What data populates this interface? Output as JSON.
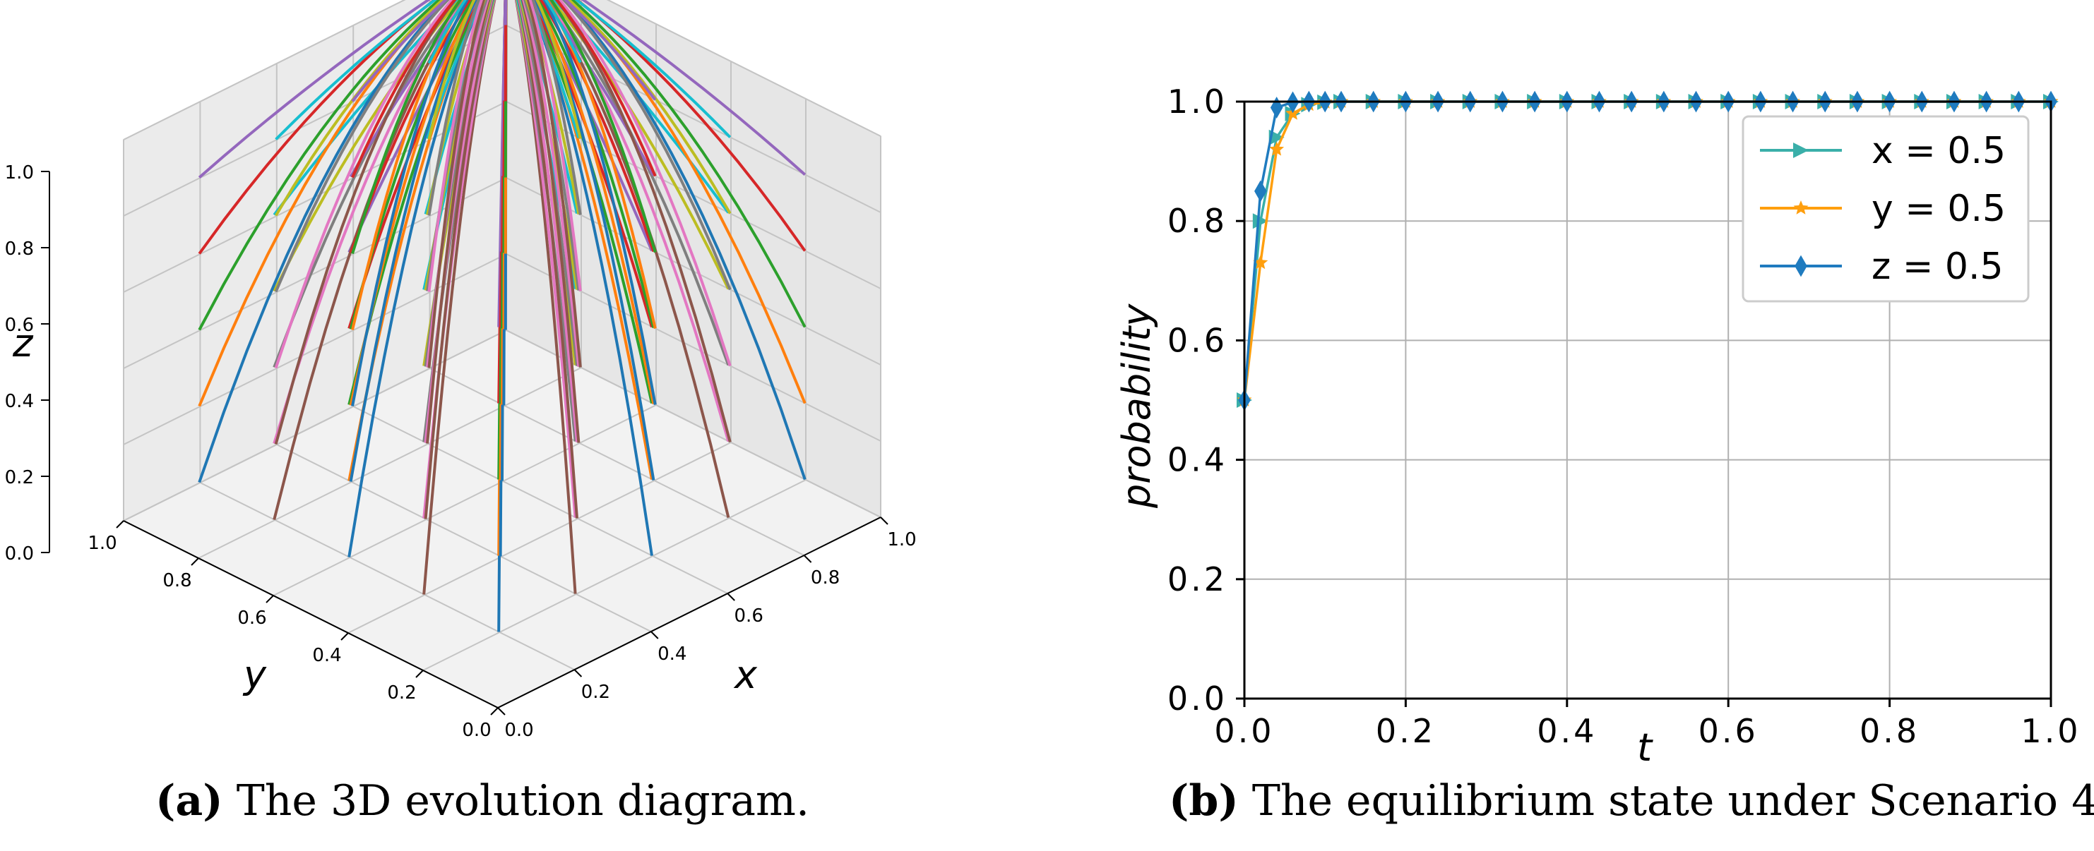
{
  "chart_data": [
    {
      "type": "line3d",
      "title": "",
      "xlabel": "x",
      "ylabel": "y",
      "zlabel": "z",
      "xlim": [
        0.0,
        1.0
      ],
      "ylim": [
        0.0,
        1.0
      ],
      "zlim": [
        0.0,
        1.0
      ],
      "x_ticks": [
        "0.0",
        "0.2",
        "0.4",
        "0.6",
        "0.8",
        "1.0"
      ],
      "y_ticks": [
        "0.0",
        "0.2",
        "0.4",
        "0.6",
        "0.8",
        "1.0"
      ],
      "z_ticks": [
        "0.0",
        "0.2",
        "0.4",
        "0.6",
        "0.8",
        "1.0"
      ],
      "grid": true,
      "converges_to": [
        1.0,
        1.0,
        1.0
      ],
      "trajectory_starts": [
        [
          0.1,
          0.1,
          0.1
        ],
        [
          0.1,
          0.1,
          0.3
        ],
        [
          0.1,
          0.1,
          0.5
        ],
        [
          0.1,
          0.1,
          0.7
        ],
        [
          0.1,
          0.1,
          0.9
        ],
        [
          0.1,
          0.3,
          0.1
        ],
        [
          0.1,
          0.3,
          0.3
        ],
        [
          0.1,
          0.3,
          0.5
        ],
        [
          0.1,
          0.3,
          0.7
        ],
        [
          0.1,
          0.3,
          0.9
        ],
        [
          0.1,
          0.5,
          0.1
        ],
        [
          0.1,
          0.5,
          0.3
        ],
        [
          0.1,
          0.5,
          0.5
        ],
        [
          0.1,
          0.5,
          0.7
        ],
        [
          0.1,
          0.5,
          0.9
        ],
        [
          0.1,
          0.7,
          0.1
        ],
        [
          0.1,
          0.7,
          0.3
        ],
        [
          0.1,
          0.7,
          0.5
        ],
        [
          0.1,
          0.7,
          0.7
        ],
        [
          0.1,
          0.7,
          0.9
        ],
        [
          0.1,
          0.9,
          0.1
        ],
        [
          0.1,
          0.9,
          0.3
        ],
        [
          0.1,
          0.9,
          0.5
        ],
        [
          0.1,
          0.9,
          0.7
        ],
        [
          0.1,
          0.9,
          0.9
        ],
        [
          0.3,
          0.1,
          0.1
        ],
        [
          0.3,
          0.1,
          0.3
        ],
        [
          0.3,
          0.1,
          0.5
        ],
        [
          0.3,
          0.1,
          0.7
        ],
        [
          0.3,
          0.1,
          0.9
        ],
        [
          0.3,
          0.3,
          0.1
        ],
        [
          0.3,
          0.3,
          0.3
        ],
        [
          0.3,
          0.3,
          0.5
        ],
        [
          0.3,
          0.3,
          0.7
        ],
        [
          0.3,
          0.3,
          0.9
        ],
        [
          0.3,
          0.5,
          0.1
        ],
        [
          0.3,
          0.5,
          0.3
        ],
        [
          0.3,
          0.5,
          0.5
        ],
        [
          0.3,
          0.5,
          0.7
        ],
        [
          0.3,
          0.5,
          0.9
        ],
        [
          0.3,
          0.7,
          0.1
        ],
        [
          0.3,
          0.7,
          0.3
        ],
        [
          0.3,
          0.7,
          0.5
        ],
        [
          0.3,
          0.7,
          0.7
        ],
        [
          0.3,
          0.7,
          0.9
        ],
        [
          0.3,
          0.9,
          0.1
        ],
        [
          0.3,
          0.9,
          0.3
        ],
        [
          0.3,
          0.9,
          0.5
        ],
        [
          0.3,
          0.9,
          0.7
        ],
        [
          0.3,
          0.9,
          0.9
        ],
        [
          0.5,
          0.1,
          0.1
        ],
        [
          0.5,
          0.1,
          0.3
        ],
        [
          0.5,
          0.1,
          0.5
        ],
        [
          0.5,
          0.1,
          0.7
        ],
        [
          0.5,
          0.1,
          0.9
        ],
        [
          0.5,
          0.3,
          0.1
        ],
        [
          0.5,
          0.3,
          0.3
        ],
        [
          0.5,
          0.3,
          0.5
        ],
        [
          0.5,
          0.3,
          0.7
        ],
        [
          0.5,
          0.3,
          0.9
        ],
        [
          0.5,
          0.5,
          0.1
        ],
        [
          0.5,
          0.5,
          0.3
        ],
        [
          0.5,
          0.5,
          0.5
        ],
        [
          0.5,
          0.5,
          0.7
        ],
        [
          0.5,
          0.5,
          0.9
        ],
        [
          0.5,
          0.7,
          0.1
        ],
        [
          0.5,
          0.7,
          0.3
        ],
        [
          0.5,
          0.7,
          0.5
        ],
        [
          0.5,
          0.7,
          0.7
        ],
        [
          0.5,
          0.7,
          0.9
        ],
        [
          0.5,
          0.9,
          0.1
        ],
        [
          0.5,
          0.9,
          0.3
        ],
        [
          0.5,
          0.9,
          0.5
        ],
        [
          0.5,
          0.9,
          0.7
        ],
        [
          0.5,
          0.9,
          0.9
        ],
        [
          0.7,
          0.1,
          0.1
        ],
        [
          0.7,
          0.1,
          0.3
        ],
        [
          0.7,
          0.1,
          0.5
        ],
        [
          0.7,
          0.1,
          0.7
        ],
        [
          0.7,
          0.1,
          0.9
        ],
        [
          0.7,
          0.3,
          0.1
        ],
        [
          0.7,
          0.3,
          0.3
        ],
        [
          0.7,
          0.3,
          0.5
        ],
        [
          0.7,
          0.3,
          0.7
        ],
        [
          0.7,
          0.3,
          0.9
        ],
        [
          0.7,
          0.5,
          0.1
        ],
        [
          0.7,
          0.5,
          0.3
        ],
        [
          0.7,
          0.5,
          0.5
        ],
        [
          0.7,
          0.5,
          0.7
        ],
        [
          0.7,
          0.5,
          0.9
        ],
        [
          0.7,
          0.7,
          0.1
        ],
        [
          0.7,
          0.7,
          0.3
        ],
        [
          0.7,
          0.7,
          0.5
        ],
        [
          0.7,
          0.7,
          0.7
        ],
        [
          0.7,
          0.7,
          0.9
        ],
        [
          0.7,
          0.9,
          0.1
        ],
        [
          0.7,
          0.9,
          0.3
        ],
        [
          0.7,
          0.9,
          0.5
        ],
        [
          0.7,
          0.9,
          0.7
        ],
        [
          0.7,
          0.9,
          0.9
        ],
        [
          0.9,
          0.1,
          0.1
        ],
        [
          0.9,
          0.1,
          0.3
        ],
        [
          0.9,
          0.1,
          0.5
        ],
        [
          0.9,
          0.1,
          0.7
        ],
        [
          0.9,
          0.1,
          0.9
        ],
        [
          0.9,
          0.3,
          0.1
        ],
        [
          0.9,
          0.3,
          0.3
        ],
        [
          0.9,
          0.3,
          0.5
        ],
        [
          0.9,
          0.3,
          0.7
        ],
        [
          0.9,
          0.3,
          0.9
        ],
        [
          0.9,
          0.5,
          0.1
        ],
        [
          0.9,
          0.5,
          0.3
        ],
        [
          0.9,
          0.5,
          0.5
        ],
        [
          0.9,
          0.5,
          0.7
        ],
        [
          0.9,
          0.5,
          0.9
        ],
        [
          0.9,
          0.7,
          0.1
        ],
        [
          0.9,
          0.7,
          0.3
        ],
        [
          0.9,
          0.7,
          0.5
        ],
        [
          0.9,
          0.7,
          0.7
        ],
        [
          0.9,
          0.7,
          0.9
        ],
        [
          0.9,
          0.9,
          0.1
        ],
        [
          0.9,
          0.9,
          0.3
        ],
        [
          0.9,
          0.9,
          0.5
        ],
        [
          0.9,
          0.9,
          0.7
        ],
        [
          0.9,
          0.9,
          0.9
        ]
      ],
      "palette": [
        "#1f77b4",
        "#ff7f0e",
        "#2ca02c",
        "#d62728",
        "#9467bd",
        "#8c564b",
        "#e377c2",
        "#7f7f7f",
        "#bcbd22",
        "#17becf"
      ],
      "caption_tag": "(a)",
      "caption_text": "The 3D evolution diagram."
    },
    {
      "type": "line",
      "title": "",
      "xlabel": "t",
      "ylabel": "probability",
      "xlim": [
        0.0,
        1.0
      ],
      "ylim": [
        0.0,
        1.0
      ],
      "x_ticks": [
        "0.0",
        "0.2",
        "0.4",
        "0.6",
        "0.8",
        "1.0"
      ],
      "y_ticks": [
        "0.0",
        "0.2",
        "0.4",
        "0.6",
        "0.8",
        "1.0"
      ],
      "grid": true,
      "legend_position": "top-right",
      "x": [
        0.0,
        0.02,
        0.04,
        0.06,
        0.08,
        0.1,
        0.12,
        0.14,
        0.16,
        0.18,
        0.2,
        0.22,
        0.24,
        0.26,
        0.28,
        0.3,
        0.32,
        0.34,
        0.36,
        0.38,
        0.4,
        0.42,
        0.44,
        0.46,
        0.48,
        0.5,
        0.52,
        0.54,
        0.56,
        0.58,
        0.6,
        0.62,
        0.64,
        0.66,
        0.68,
        0.7,
        0.72,
        0.74,
        0.76,
        0.78,
        0.8,
        0.82,
        0.84,
        0.86,
        0.88,
        0.9,
        0.92,
        0.94,
        0.96,
        0.98,
        1.0
      ],
      "series": [
        {
          "name": "x = 0.5",
          "color": "#3aafa9",
          "marker": "triangle-right",
          "values": [
            0.5,
            0.8,
            0.94,
            0.98,
            0.995,
            0.999,
            1,
            1,
            1,
            1,
            1,
            1,
            1,
            1,
            1,
            1,
            1,
            1,
            1,
            1,
            1,
            1,
            1,
            1,
            1,
            1,
            1,
            1,
            1,
            1,
            1,
            1,
            1,
            1,
            1,
            1,
            1,
            1,
            1,
            1,
            1,
            1,
            1,
            1,
            1,
            1,
            1,
            1,
            1,
            1,
            1
          ]
        },
        {
          "name": "y = 0.5",
          "color": "#ff9f0e",
          "marker": "star",
          "values": [
            0.5,
            0.73,
            0.92,
            0.98,
            0.995,
            0.999,
            1,
            1,
            1,
            1,
            1,
            1,
            1,
            1,
            1,
            1,
            1,
            1,
            1,
            1,
            1,
            1,
            1,
            1,
            1,
            1,
            1,
            1,
            1,
            1,
            1,
            1,
            1,
            1,
            1,
            1,
            1,
            1,
            1,
            1,
            1,
            1,
            1,
            1,
            1,
            1,
            1,
            1,
            1,
            1,
            1
          ]
        },
        {
          "name": "z = 0.5",
          "color": "#1f7bbf",
          "marker": "diamond",
          "values": [
            0.5,
            0.85,
            0.99,
            0.999,
            1,
            1,
            1,
            1,
            1,
            1,
            1,
            1,
            1,
            1,
            1,
            1,
            1,
            1,
            1,
            1,
            1,
            1,
            1,
            1,
            1,
            1,
            1,
            1,
            1,
            1,
            1,
            1,
            1,
            1,
            1,
            1,
            1,
            1,
            1,
            1,
            1,
            1,
            1,
            1,
            1,
            1,
            1,
            1,
            1,
            1,
            1
          ]
        }
      ],
      "caption_tag": "(b)",
      "caption_text": "The equilibrium state under Scenario 4."
    }
  ]
}
